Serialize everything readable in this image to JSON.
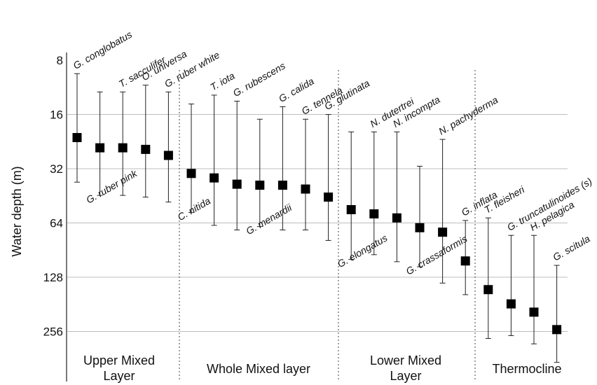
{
  "chart_data": {
    "type": "scatter",
    "ylabel": "Water depth (m)",
    "y_scale": "log2",
    "y_inverted": true,
    "ylim": [
      8,
      400
    ],
    "yticks": [
      8,
      16,
      32,
      64,
      128,
      256
    ],
    "grid_lines_at": [
      16,
      32,
      64,
      128,
      256
    ],
    "zones": [
      {
        "name": "Upper Mixed Layer",
        "lines": [
          "Upper Mixed",
          "Layer"
        ]
      },
      {
        "name": "Whole Mixed layer",
        "lines": [
          "Whole Mixed layer"
        ]
      },
      {
        "name": "Lower Mixed Layer",
        "lines": [
          "Lower Mixed",
          "Layer"
        ]
      },
      {
        "name": "Thermocline",
        "lines": [
          "Thermocline"
        ]
      }
    ],
    "points": [
      {
        "species": "G. conglobatus",
        "label_position": "top",
        "mean_depth": 21.5,
        "range": [
          9.5,
          38
        ]
      },
      {
        "species": "G. ruber pink",
        "label_position": "bottom",
        "mean_depth": 24.5,
        "range": [
          12,
          45
        ]
      },
      {
        "species": "T. sacculifer",
        "label_position": "top",
        "mean_depth": 24.5,
        "range": [
          12,
          45
        ]
      },
      {
        "species": "O. universa",
        "label_position": "top",
        "mean_depth": 25,
        "range": [
          11,
          46
        ]
      },
      {
        "species": "G. ruber white",
        "label_position": "top",
        "mean_depth": 27,
        "range": [
          12,
          49
        ]
      },
      {
        "species": "C. nitida",
        "label_position": "bottom",
        "mean_depth": 34,
        "range": [
          14,
          56
        ]
      },
      {
        "species": "T. iota",
        "label_position": "top",
        "mean_depth": 36,
        "range": [
          12.5,
          66
        ]
      },
      {
        "species": "G. rubescens",
        "label_position": "top",
        "mean_depth": 39,
        "range": [
          13.5,
          70
        ]
      },
      {
        "species": "G. menardii",
        "label_position": "bottom",
        "mean_depth": 39.5,
        "range": [
          17,
          67
        ]
      },
      {
        "species": "G. calida",
        "label_position": "top",
        "mean_depth": 39.5,
        "range": [
          14.5,
          70
        ]
      },
      {
        "species": "G. tennela",
        "label_position": "top",
        "mean_depth": 41.5,
        "range": [
          17,
          70
        ]
      },
      {
        "species": "G. glutinata",
        "label_position": "top",
        "mean_depth": 46,
        "range": [
          16,
          80
        ]
      },
      {
        "species": "G. elongatus",
        "label_position": "bottom",
        "mean_depth": 54,
        "range": [
          20,
          102
        ]
      },
      {
        "species": "N. dutertrei",
        "label_position": "top",
        "mean_depth": 57,
        "range": [
          20,
          96
        ]
      },
      {
        "species": "N. incompta",
        "label_position": "top",
        "mean_depth": 60,
        "range": [
          20,
          105
        ]
      },
      {
        "species": "G. crassaformis",
        "label_position": "bottom",
        "mean_depth": 68,
        "range": [
          31,
          112
        ]
      },
      {
        "species": "N. pachyderma",
        "label_position": "top",
        "mean_depth": 72,
        "range": [
          22,
          138
        ]
      },
      {
        "species": "G. inflata",
        "label_position": "top",
        "mean_depth": 104,
        "range": [
          62,
          160
        ]
      },
      {
        "species": "T. fleisheri",
        "label_position": "top",
        "mean_depth": 150,
        "range": [
          60,
          280
        ]
      },
      {
        "species": "G. truncatulinoides (s)",
        "label_position": "top",
        "mean_depth": 180,
        "range": [
          75,
          270
        ]
      },
      {
        "species": "H. pelagica",
        "label_position": "top",
        "mean_depth": 200,
        "range": [
          75,
          300
        ]
      },
      {
        "species": "G. scitula",
        "label_position": "top",
        "mean_depth": 250,
        "range": [
          110,
          380
        ]
      }
    ]
  }
}
